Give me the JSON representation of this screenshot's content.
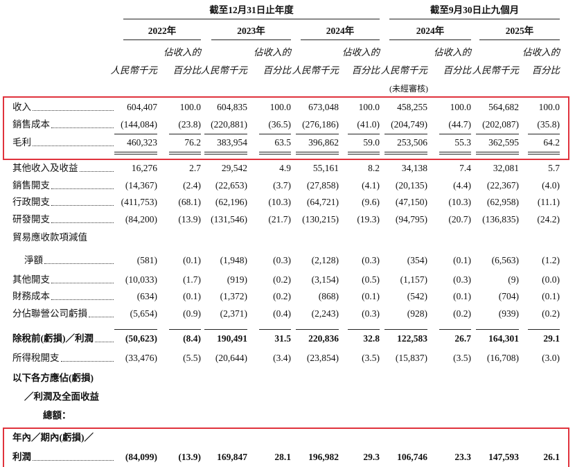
{
  "header": {
    "groups": [
      "截至12月31日止年度",
      "截至9月30日止九個月"
    ],
    "years": [
      "2022年",
      "2023年",
      "2024年",
      "2024年",
      "2025年"
    ],
    "amount_unit": "人民幣千元",
    "pct_unit": [
      "佔收入的",
      "百分比"
    ],
    "unaudited": "(未經審核)"
  },
  "table": {
    "rows": [
      {
        "label": [
          "收入"
        ],
        "values": [
          "604,407",
          "100.0",
          "604,835",
          "100.0",
          "673,048",
          "100.0",
          "458,255",
          "100.0",
          "564,682",
          "100.0"
        ]
      },
      {
        "label": [
          "銷售成本"
        ],
        "values": [
          "(144,084)",
          "(23.8)",
          "(220,881)",
          "(36.5)",
          "(276,186)",
          "(41.0)",
          "(204,749)",
          "(44.7)",
          "(202,087)",
          "(35.8)"
        ]
      },
      {
        "label": [
          "毛利"
        ],
        "values": [
          "460,323",
          "76.2",
          "383,954",
          "63.5",
          "396,862",
          "59.0",
          "253,506",
          "55.3",
          "362,595",
          "64.2"
        ]
      },
      {
        "label": [
          "其他收入及收益"
        ],
        "values": [
          "16,276",
          "2.7",
          "29,542",
          "4.9",
          "55,161",
          "8.2",
          "34,138",
          "7.4",
          "32,081",
          "5.7"
        ]
      },
      {
        "label": [
          "銷售開支"
        ],
        "values": [
          "(14,367)",
          "(2.4)",
          "(22,653)",
          "(3.7)",
          "(27,858)",
          "(4.1)",
          "(20,135)",
          "(4.4)",
          "(22,367)",
          "(4.0)"
        ]
      },
      {
        "label": [
          "行政開支"
        ],
        "values": [
          "(411,753)",
          "(68.1)",
          "(62,196)",
          "(10.3)",
          "(64,721)",
          "(9.6)",
          "(47,150)",
          "(10.3)",
          "(62,958)",
          "(11.1)"
        ]
      },
      {
        "label": [
          "研發開支"
        ],
        "values": [
          "(84,200)",
          "(13.9)",
          "(131,546)",
          "(21.7)",
          "(130,215)",
          "(19.3)",
          "(94,795)",
          "(20.7)",
          "(136,835)",
          "(24.2)"
        ]
      },
      {
        "label": [
          "貿易應收款項減值",
          "淨額"
        ],
        "values": [
          "(581)",
          "(0.1)",
          "(1,948)",
          "(0.3)",
          "(2,128)",
          "(0.3)",
          "(354)",
          "(0.1)",
          "(6,563)",
          "(1.2)"
        ]
      },
      {
        "label": [
          "其他開支"
        ],
        "values": [
          "(10,033)",
          "(1.7)",
          "(919)",
          "(0.2)",
          "(3,154)",
          "(0.5)",
          "(1,157)",
          "(0.3)",
          "(9)",
          "(0.0)"
        ]
      },
      {
        "label": [
          "財務成本"
        ],
        "values": [
          "(634)",
          "(0.1)",
          "(1,372)",
          "(0.2)",
          "(868)",
          "(0.1)",
          "(542)",
          "(0.1)",
          "(704)",
          "(0.1)"
        ]
      },
      {
        "label": [
          "分佔聯營公司虧損"
        ],
        "values": [
          "(5,654)",
          "(0.9)",
          "(2,371)",
          "(0.4)",
          "(2,243)",
          "(0.3)",
          "(928)",
          "(0.2)",
          "(939)",
          "(0.2)"
        ]
      },
      {
        "label": [
          "除稅前(虧損)／利潤"
        ],
        "bold": true,
        "values": [
          "(50,623)",
          "(8.4)",
          "190,491",
          "31.5",
          "220,836",
          "32.8",
          "122,583",
          "26.7",
          "164,301",
          "29.1"
        ]
      },
      {
        "label": [
          "所得稅開支"
        ],
        "values": [
          "(33,476)",
          "(5.5)",
          "(20,644)",
          "(3.4)",
          "(23,854)",
          "(3.5)",
          "(15,837)",
          "(3.5)",
          "(16,708)",
          "(3.0)"
        ]
      },
      {
        "label": [
          "以下各方應佔(虧損)",
          "／利潤及全面收益",
          "總額："
        ],
        "bold": true
      },
      {
        "label": [
          "年內／期內(虧損)／",
          "利潤"
        ],
        "bold": true,
        "values": [
          "(84,099)",
          "(13.9)",
          "169,847",
          "28.1",
          "196,982",
          "29.3",
          "106,746",
          "23.3",
          "147,593",
          "26.1"
        ]
      }
    ]
  }
}
